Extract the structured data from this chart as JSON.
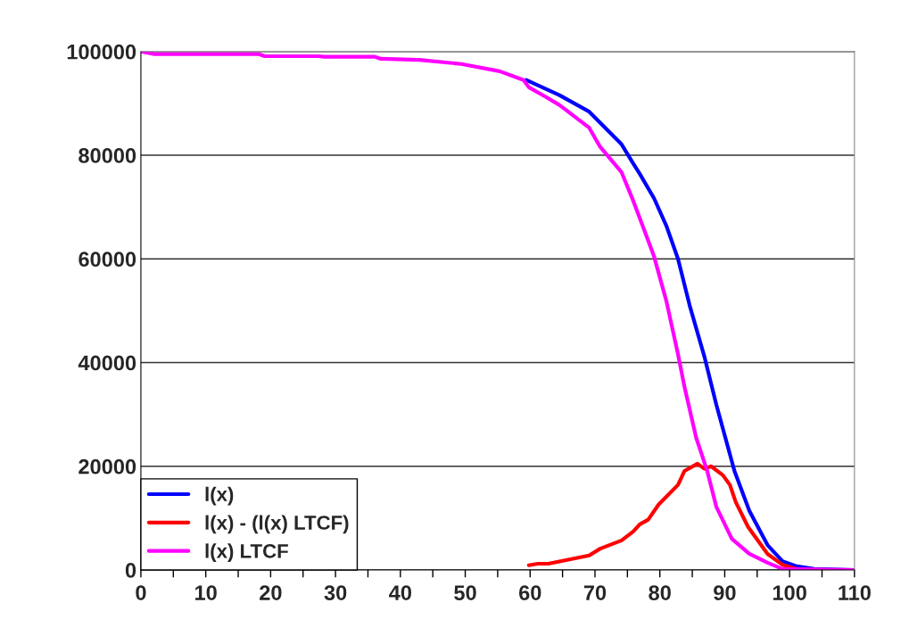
{
  "chart_data": {
    "type": "line",
    "xlim": [
      0,
      110
    ],
    "ylim": [
      0,
      100000
    ],
    "xticks": [
      0,
      {
        "value": 5,
        "label": null
      },
      10,
      {
        "value": 15,
        "label": null
      },
      20,
      {
        "value": 25,
        "label": null
      },
      30,
      {
        "value": 35,
        "label": null
      },
      40,
      {
        "value": 45,
        "label": null
      },
      50,
      {
        "value": 55,
        "label": null
      },
      60,
      {
        "value": 65,
        "label": null
      },
      70,
      {
        "value": 75,
        "label": null
      },
      80,
      {
        "value": 85,
        "label": null
      },
      90,
      {
        "value": 95,
        "label": null
      },
      100,
      {
        "value": 105,
        "label": null
      },
      110
    ],
    "yticks": [
      0,
      20000,
      40000,
      60000,
      80000,
      100000
    ],
    "grid": "y",
    "legend": "bottom left",
    "line_style": "solid",
    "marker": "none",
    "series": [
      {
        "name": "l(x)",
        "color": "#0000ff",
        "x": [
          59.4,
          64.5,
          69.1,
          74.1,
          75.9,
          76.9,
          79.1,
          81.0,
          82.8,
          84.6,
          86.9,
          88.7,
          91.5,
          93.8,
          96.6,
          98.9,
          101.1,
          103.8,
          110
        ],
        "values": [
          94500,
          91600,
          88400,
          82100,
          78400,
          76400,
          71700,
          66400,
          60000,
          51000,
          41000,
          31900,
          19100,
          11400,
          4800,
          1700,
          700,
          200,
          0
        ]
      },
      {
        "name": "l(x) - (l(x) LTCF)",
        "color": "#ff0000",
        "x": [
          59.8,
          61.2,
          62.8,
          69.1,
          70.8,
          74.1,
          75.9,
          76.9,
          78.2,
          79.8,
          82.8,
          83.8,
          85.8,
          86.9,
          87.9,
          89.7,
          90.8,
          91.7,
          93.6,
          96.6,
          98.9,
          101,
          103.8,
          110
        ],
        "values": [
          900,
          1200,
          1200,
          2800,
          4100,
          5700,
          7400,
          8800,
          9700,
          12600,
          16400,
          19100,
          20500,
          19500,
          20000,
          18300,
          16400,
          13100,
          8300,
          3100,
          1000,
          200,
          0,
          0
        ]
      },
      {
        "name": "l(x) LTCF",
        "color": "#ff00ff",
        "x": [
          0,
          2.1,
          18.2,
          19.1,
          27.4,
          28.2,
          36,
          37,
          42.9,
          49.4,
          55.3,
          59.0,
          59.8,
          62.2,
          64.5,
          69.1,
          70.8,
          74.1,
          75.9,
          77.7,
          79.1,
          81.0,
          82.8,
          83.8,
          85.6,
          87.3,
          88.7,
          91.1,
          93.8,
          96.6,
          98.9,
          110
        ],
        "values": [
          100000,
          99500,
          99500,
          99100,
          99100,
          99000,
          99000,
          98600,
          98400,
          97600,
          96200,
          94500,
          93100,
          91400,
          89700,
          85300,
          81600,
          76700,
          71200,
          65200,
          60500,
          51900,
          41600,
          35300,
          25500,
          19100,
          12200,
          6000,
          3100,
          1400,
          200,
          0
        ]
      }
    ]
  }
}
